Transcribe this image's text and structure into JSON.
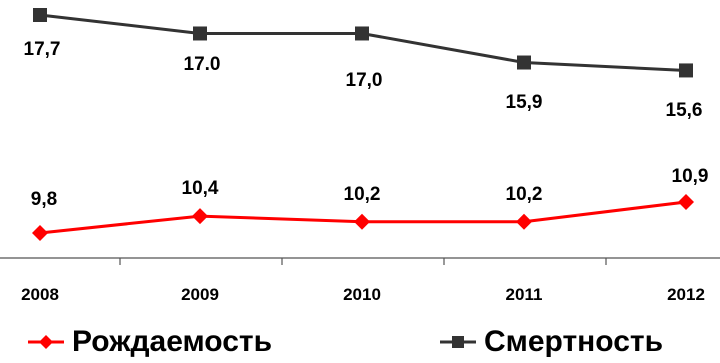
{
  "chart_data": {
    "type": "line",
    "x": [
      "2008",
      "2009",
      "2010",
      "2011",
      "2012"
    ],
    "series": [
      {
        "name": "Смертность",
        "values": [
          17.7,
          17.0,
          17.0,
          15.9,
          15.6
        ],
        "labels": [
          "17,7",
          "17.0",
          "17,0",
          "15,9",
          "15,6"
        ],
        "color": "#333333",
        "marker": "square"
      },
      {
        "name": "Рождаемость",
        "values": [
          9.8,
          10.4,
          10.2,
          10.2,
          10.9
        ],
        "labels": [
          "9,8",
          "10,4",
          "10,2",
          "10,2",
          "10,9"
        ],
        "color": "#ff0000",
        "marker": "diamond"
      }
    ],
    "legend": [
      "Рождаемость",
      "Смертность"
    ],
    "legend_position": "bottom",
    "grid": false
  },
  "colors": {
    "birth": "#ff0000",
    "death": "#333333",
    "axis": "#555555"
  }
}
